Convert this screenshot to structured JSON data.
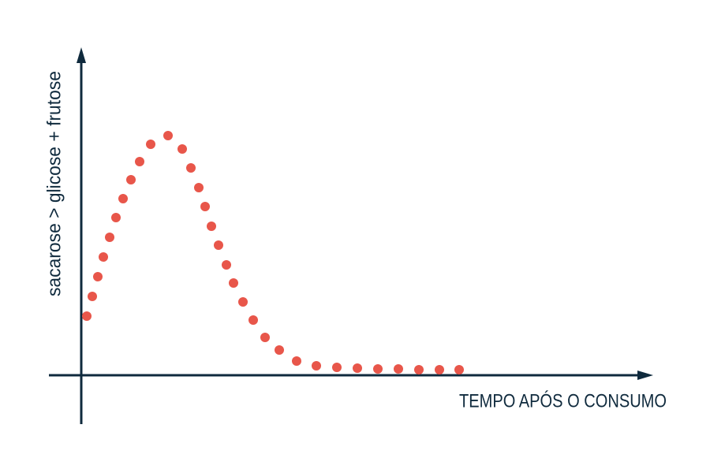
{
  "chart_data": {
    "type": "scatter",
    "x_label": "TEMPO APÓS O CONSUMO",
    "y_label": "sacarose  >  glicose + frutose",
    "xlim": [
      0,
      722
    ],
    "ylim": [
      0,
      410
    ],
    "series": [
      {
        "color": "#e8564a",
        "x": [
          7,
          14,
          21,
          28,
          36,
          44,
          53,
          63,
          74,
          88,
          110,
          128,
          139,
          149,
          157,
          165,
          174,
          184,
          193,
          205,
          218,
          233,
          251,
          273,
          298,
          324,
          350,
          376,
          402,
          428,
          454,
          479
        ],
        "values": [
          75,
          100,
          125,
          150,
          175,
          200,
          224,
          248,
          271,
          293,
          304,
          287,
          263,
          238,
          214,
          189,
          165,
          140,
          117,
          93,
          70,
          48,
          32,
          18,
          12,
          10,
          9,
          8,
          8,
          7,
          7,
          7
        ]
      }
    ]
  }
}
